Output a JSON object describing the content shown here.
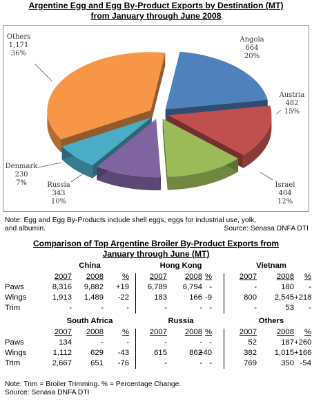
{
  "chart_title_line1": "Argentine Egg and Egg By-Product Exports by Destination (MT)",
  "chart_title_line2": "from January through June 2008",
  "chart_data": {
    "type": "pie",
    "title": "Argentine Egg and Egg By-Product Exports by Destination (MT) from January through June 2008",
    "slices": [
      {
        "name": "Angola",
        "value": 664,
        "percent": "20%",
        "color": "#4F81BD"
      },
      {
        "name": "Austria",
        "value": 482,
        "percent": "15%",
        "color": "#C0504D"
      },
      {
        "name": "Israel",
        "value": 404,
        "percent": "12%",
        "color": "#9BBB59"
      },
      {
        "name": "Russia",
        "value": 343,
        "percent": "10%",
        "color": "#8064A2"
      },
      {
        "name": "Denmark",
        "value": 230,
        "percent": "7%",
        "color": "#4BACC6"
      },
      {
        "name": "Others",
        "value": "1,171",
        "percent": "36%",
        "color": "#F79646"
      }
    ]
  },
  "note1_line1": "Note: Egg and Egg By-Products include shell eggs, eggs for industrial use, yolk,",
  "note1_line2": "and albumin.",
  "note1_source": "Source: Senasa DNFA DTI",
  "table_title_line1": "Comparison of Top Argentine Broiler By-Product Exports from",
  "table_title_line2": "January through June (MT)",
  "table": {
    "year_a": "2007",
    "year_b": "2008",
    "pct": "%",
    "row_labels": [
      "Paws",
      "Wings",
      "Trim"
    ],
    "blocks": [
      {
        "country": "China",
        "rows": [
          [
            "8,316",
            "9,882",
            "+19"
          ],
          [
            "1,913",
            "1,489",
            "-22"
          ],
          [
            "-",
            "-",
            "-"
          ]
        ]
      },
      {
        "country": "Hong Kong",
        "rows": [
          [
            "6,789",
            "6,794",
            "-"
          ],
          [
            "183",
            "166",
            "-9"
          ],
          [
            "-",
            "-",
            "-"
          ]
        ]
      },
      {
        "country": "Vietnam",
        "rows": [
          [
            "-",
            "180",
            "-"
          ],
          [
            "800",
            "2,545",
            "+218"
          ],
          [
            "-",
            "53",
            "-"
          ]
        ]
      },
      {
        "country": "South Africa",
        "rows": [
          [
            "134",
            "-",
            "-"
          ],
          [
            "1,112",
            "629",
            "-43"
          ],
          [
            "2,667",
            "651",
            "-76"
          ]
        ]
      },
      {
        "country": "Russia",
        "rows": [
          [
            "-",
            "-",
            "-"
          ],
          [
            "615",
            "862",
            "+40"
          ],
          [
            "-",
            "-",
            "-"
          ]
        ]
      },
      {
        "country": "Others",
        "rows": [
          [
            "52",
            "187",
            "+260"
          ],
          [
            "382",
            "1,015",
            "+166"
          ],
          [
            "769",
            "350",
            "-54"
          ]
        ]
      }
    ]
  },
  "note2_line1": "Note: Trim = Broiler Trimming. % = Percentage Change.",
  "note2_line2": "Source: Senasa DNFA DTI"
}
